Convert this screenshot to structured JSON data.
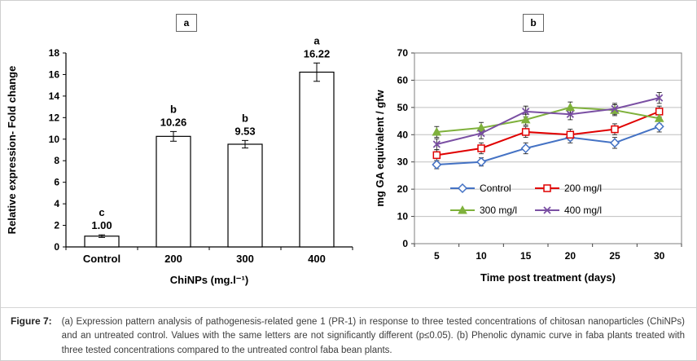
{
  "figure": {
    "panel_a_label": "a",
    "panel_b_label": "b"
  },
  "caption": {
    "label": "Figure 7:",
    "text": "(a) Expression pattern analysis of pathogenesis-related gene 1 (PR-1) in response to three tested concentrations of chitosan nanoparticles (ChiNPs) and an untreated control. Values with the same letters are not significantly different (p≤0.05). (b) Phenolic dynamic curve in faba plants treated with three tested concentrations compared to the untreated control faba bean plants."
  },
  "chart_data": [
    {
      "type": "bar",
      "panel": "a",
      "categories": [
        "Control",
        "200",
        "300",
        "400"
      ],
      "values": [
        1.0,
        10.26,
        9.53,
        16.22
      ],
      "value_labels": [
        "1.00",
        "10.26",
        "9.53",
        "16.22"
      ],
      "letters": [
        "c",
        "b",
        "b",
        "a"
      ],
      "errors": [
        0.12,
        0.45,
        0.35,
        0.85
      ],
      "xlabel": "ChiNPs (mg.l⁻¹)",
      "ylabel": "Relative expression- Fold change",
      "ylim": [
        0,
        18
      ],
      "ytick_step": 2,
      "grid": false,
      "bar_fill": "#ffffff",
      "bar_stroke": "#000000"
    },
    {
      "type": "line",
      "panel": "b",
      "x": [
        5,
        10,
        15,
        20,
        25,
        30
      ],
      "series": [
        {
          "name": "Control",
          "color": "#4472C4",
          "marker": "diamond",
          "values": [
            29,
            30,
            35,
            39,
            37,
            43
          ],
          "errors": [
            1.5,
            1.5,
            2,
            2,
            2,
            2
          ]
        },
        {
          "name": "200 mg/l",
          "color": "#E00000",
          "marker": "square",
          "values": [
            32.5,
            35,
            41,
            40,
            42,
            48.5
          ],
          "errors": [
            2,
            2,
            2,
            2,
            2,
            2
          ]
        },
        {
          "name": "300 mg/l",
          "color": "#7FB13C",
          "marker": "triangle",
          "values": [
            41,
            42.5,
            45.5,
            50,
            49,
            46
          ],
          "errors": [
            2,
            2,
            2,
            2,
            2,
            2
          ]
        },
        {
          "name": "400 mg/l",
          "color": "#7A4FA3",
          "marker": "x",
          "values": [
            36.5,
            40.5,
            48.5,
            47.5,
            49.5,
            53.5
          ],
          "errors": [
            2,
            2,
            2,
            2,
            2,
            2
          ]
        }
      ],
      "xlabel": "Time post treatment (days)",
      "ylabel": "mg GA equivalent / gfw",
      "ylim": [
        0,
        70
      ],
      "ytick_step": 10,
      "grid": true,
      "legend_position": "inside-bottom"
    }
  ]
}
